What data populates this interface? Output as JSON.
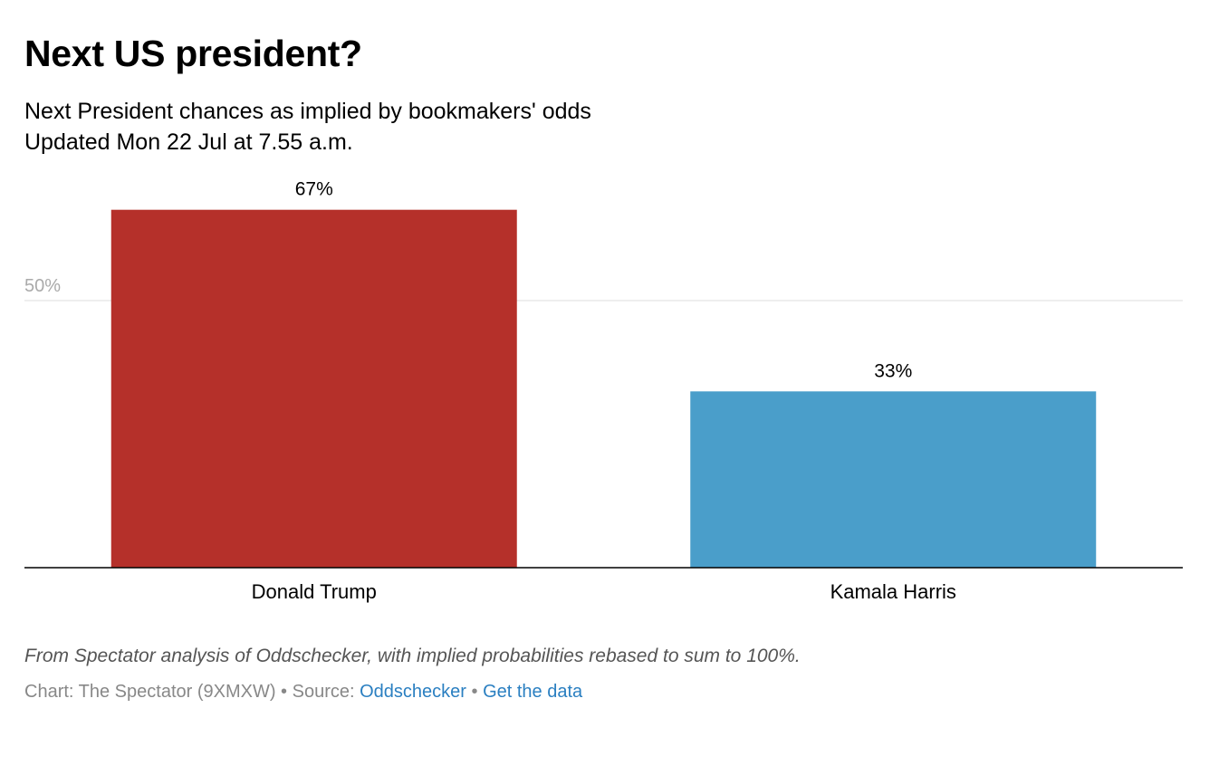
{
  "header": {
    "title": "Next US president?",
    "subtitle_line1": "Next President chances as implied by bookmakers' odds",
    "subtitle_line2": "Updated Mon 22 Jul at 7.55 a.m."
  },
  "chart_data": {
    "type": "bar",
    "categories": [
      "Donald Trump",
      "Kamala Harris"
    ],
    "values": [
      67,
      33
    ],
    "value_labels": [
      "67%",
      "33%"
    ],
    "bar_colors": [
      "#b5302a",
      "#4a9eca"
    ],
    "ylim": [
      0,
      100
    ],
    "yticks": [
      50
    ],
    "ytick_labels": [
      "50%"
    ],
    "grid": true,
    "title": "Next US president?",
    "xlabel": "",
    "ylabel": ""
  },
  "footer": {
    "note": "From Spectator analysis of Oddschecker, with implied probabilities rebased to sum to 100%.",
    "credit_prefix": "Chart: The Spectator (9XMXW)",
    "separator": " • ",
    "source_label": "Source: ",
    "source_link": "Oddschecker",
    "get_data_link": "Get the data"
  },
  "colors": {
    "link": "#2a7fc1",
    "grid": "#dddddd",
    "axis": "#000000",
    "tick_label": "#aaaaaa"
  }
}
